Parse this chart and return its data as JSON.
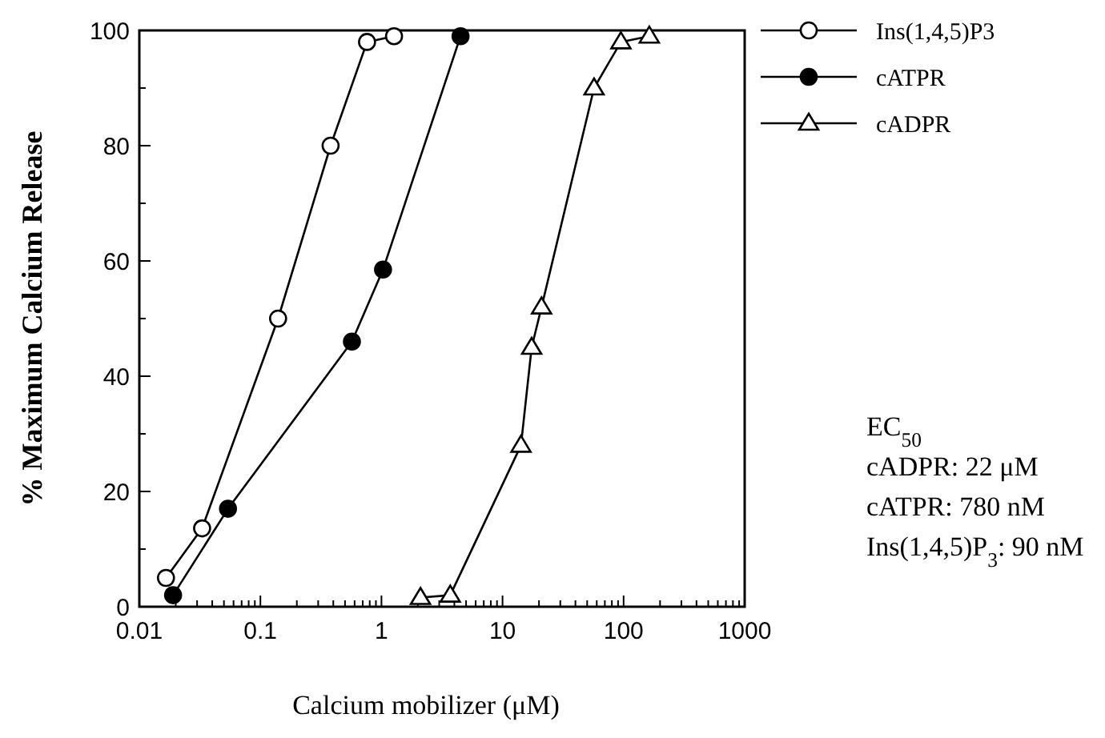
{
  "chart_data": {
    "type": "line",
    "xlabel": "Calcium mobilizer (μM)",
    "ylabel": "% Maximum Calcium Release",
    "log": "x",
    "legend": "top right",
    "grid": false,
    "xlim": [
      0.01,
      1000
    ],
    "ylim": [
      0,
      100
    ],
    "xticks": [
      0.01,
      {
        "value": 0.02,
        "label": null
      },
      {
        "value": 0.03,
        "label": null
      },
      {
        "value": 0.04,
        "label": null
      },
      {
        "value": 0.05,
        "label": null
      },
      {
        "value": 0.06,
        "label": null
      },
      {
        "value": 0.07,
        "label": null
      },
      {
        "value": 0.08,
        "label": null
      },
      {
        "value": 0.09,
        "label": null
      },
      0.1,
      {
        "value": 0.2,
        "label": null
      },
      {
        "value": 0.3,
        "label": null
      },
      {
        "value": 0.4,
        "label": null
      },
      {
        "value": 0.5,
        "label": null
      },
      {
        "value": 0.6,
        "label": null
      },
      {
        "value": 0.7,
        "label": null
      },
      {
        "value": 0.8,
        "label": null
      },
      {
        "value": 0.9,
        "label": null
      },
      1,
      {
        "value": 2,
        "label": null
      },
      {
        "value": 3,
        "label": null
      },
      {
        "value": 4,
        "label": null
      },
      {
        "value": 5,
        "label": null
      },
      {
        "value": 6,
        "label": null
      },
      {
        "value": 7,
        "label": null
      },
      {
        "value": 8,
        "label": null
      },
      {
        "value": 9,
        "label": null
      },
      10,
      {
        "value": 20,
        "label": null
      },
      {
        "value": 30,
        "label": null
      },
      {
        "value": 40,
        "label": null
      },
      {
        "value": 50,
        "label": null
      },
      {
        "value": 60,
        "label": null
      },
      {
        "value": 70,
        "label": null
      },
      {
        "value": 80,
        "label": null
      },
      {
        "value": 90,
        "label": null
      },
      100,
      {
        "value": 200,
        "label": null
      },
      {
        "value": 300,
        "label": null
      },
      {
        "value": 400,
        "label": null
      },
      {
        "value": 500,
        "label": null
      },
      {
        "value": 600,
        "label": null
      },
      {
        "value": 700,
        "label": null
      },
      {
        "value": 800,
        "label": null
      },
      {
        "value": 900,
        "label": null
      },
      1000
    ],
    "yticks": [
      0,
      {
        "value": 10,
        "label": null
      },
      20,
      {
        "value": 30,
        "label": null
      },
      40,
      {
        "value": 50,
        "label": null
      },
      60,
      {
        "value": 70,
        "label": null
      },
      80,
      {
        "value": 90,
        "label": null
      },
      100
    ],
    "series": [
      {
        "name": "Ins(1,4,5)P3",
        "color": "#000000",
        "marker": "circle",
        "x": [
          0.0166,
          0.033,
          0.14,
          0.38,
          0.76,
          1.27
        ],
        "values": [
          5,
          13.6,
          50,
          80,
          98,
          99
        ]
      },
      {
        "name": "cATPR",
        "color": "#000000",
        "marker": "circle",
        "x": [
          0.019,
          0.054,
          0.57,
          1.03,
          4.5
        ],
        "values": [
          2,
          17,
          46,
          58.5,
          99
        ]
      },
      {
        "name": "cADPR",
        "color": "#000000",
        "marker": "triangle",
        "x": [
          2.1,
          3.7,
          14.2,
          17.4,
          21,
          57,
          95,
          163
        ],
        "values": [
          1.6,
          2,
          28,
          45,
          52,
          90,
          98,
          99
        ]
      }
    ],
    "annotations": [
      "EC$_{50}$",
      "cADPR: 22 μM",
      "cATPR: 780 nM",
      "Ins(1,4,5)P$_{3}$: 90 nM"
    ]
  }
}
